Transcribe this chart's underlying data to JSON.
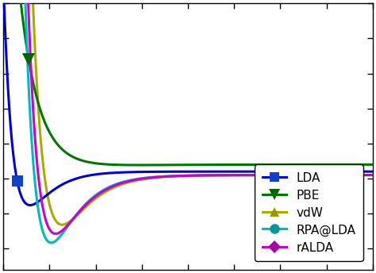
{
  "title": "",
  "xlim": [
    3.0,
    11.0
  ],
  "ylim": [
    -0.13,
    0.25
  ],
  "curves": {
    "LDA": {
      "color": "#0000dd",
      "markercolor": "#1040cc",
      "marker": "s"
    },
    "PBE": {
      "color": "#007700",
      "markercolor": "#006600",
      "marker": "v"
    },
    "vdW": {
      "color": "#aaaa00",
      "markercolor": "#999900",
      "marker": "^"
    },
    "RPA@LDA": {
      "color": "#00bbbb",
      "markercolor": "#009999",
      "marker": "o"
    },
    "rALDA": {
      "color": "#cc00cc",
      "markercolor": "#aa00aa",
      "marker": "D"
    }
  },
  "lw": 2.2,
  "ms": 10
}
